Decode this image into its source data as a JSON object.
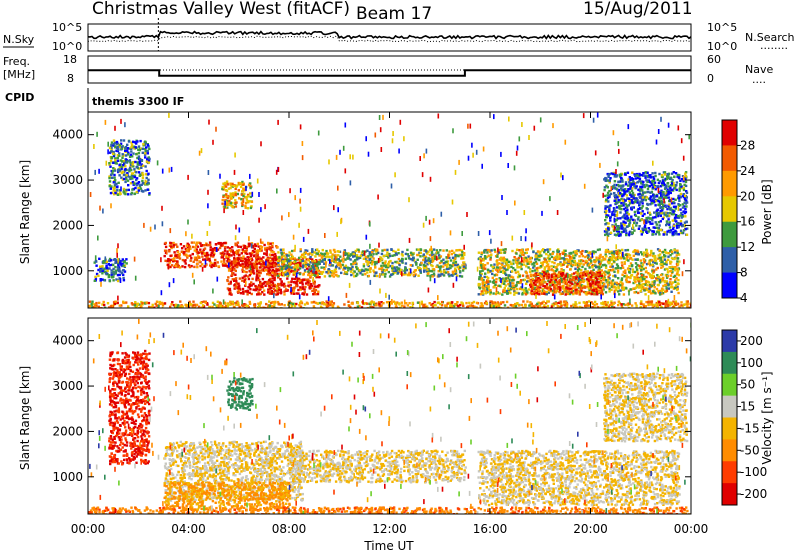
{
  "header": {
    "radar": "Christmas Valley West (fitACF)",
    "beam": "Beam 17",
    "date": "15/Aug/2011"
  },
  "panels": {
    "nsky": {
      "label": "N.Sky",
      "ticks_left": [
        "10^5",
        "10^0"
      ],
      "ticks_right": [
        "10^5",
        "10^0"
      ],
      "right_label": "N.Search",
      "right_legend": "........"
    },
    "freq": {
      "label_line1": "Freq.",
      "label_line2": "[MHz]",
      "ticks_left": [
        "18",
        "8"
      ],
      "ticks_right": [
        "60",
        "0"
      ],
      "right_label": "Nave",
      "right_legend": "...."
    },
    "cpid": {
      "label": "CPID",
      "text": "themis 3300 IF"
    },
    "power": {
      "ylabel": "Slant Range [km]",
      "yticks": [
        "4000",
        "3000",
        "2000",
        "1000"
      ],
      "colorbar_label": "Power [dB]",
      "colorbar_ticks": [
        "28",
        "24",
        "20",
        "16",
        "12",
        "8",
        "4"
      ],
      "colors": [
        "#e00000",
        "#f25a00",
        "#ff9a00",
        "#e6c800",
        "#3e9a3e",
        "#2e5fa8",
        "#0000ff"
      ]
    },
    "velocity": {
      "ylabel": "Slant Range [km]",
      "yticks": [
        "4000",
        "3000",
        "2000",
        "1000"
      ],
      "colorbar_label": "Velocity [m s⁻¹]",
      "colorbar_ticks": [
        "200",
        "100",
        "50",
        "15",
        "-15",
        "-50",
        "-100",
        "-200"
      ],
      "colors": [
        "#2c3aa8",
        "#2e8b57",
        "#6ccf2a",
        "#c8c8c0",
        "#f4b400",
        "#ff8c00",
        "#ff3c00",
        "#e00000"
      ]
    }
  },
  "xaxis": {
    "label": "Time UT",
    "ticks": [
      "00:00",
      "04:00",
      "08:00",
      "12:00",
      "16:00",
      "20:00",
      "00:00"
    ]
  },
  "chart_data": [
    {
      "type": "line",
      "title": "N.Sky",
      "x_range": [
        "00:00",
        "24:00"
      ],
      "ylim": [
        "10^0",
        "10^5"
      ],
      "yscale": "log"
    },
    {
      "type": "line",
      "title": "Freq. [MHz]",
      "x": [
        "00:00",
        "02:50",
        "02:50",
        "15:00",
        "15:00",
        "24:00"
      ],
      "series": [
        {
          "name": "Freq.",
          "values": [
            12.7,
            12.7,
            10.7,
            10.7,
            12.7,
            12.7
          ]
        }
      ],
      "ylim": [
        8,
        18
      ],
      "y2lim": [
        0,
        60
      ]
    },
    {
      "type": "heatmap",
      "title": "Power [dB]",
      "xlabel": "Time UT",
      "ylabel": "Slant Range [km]",
      "x_range_hours": [
        0,
        24
      ],
      "ylim": [
        180,
        4500
      ],
      "color_scale": [
        4,
        8,
        12,
        16,
        20,
        24,
        28
      ],
      "regions": [
        {
          "hours": [
            3.0,
            7.5
          ],
          "range_km": [
            1100,
            1650
          ],
          "power_db": 26
        },
        {
          "hours": [
            5.5,
            9.2
          ],
          "range_km": [
            500,
            1300
          ],
          "power_db": 28
        },
        {
          "hours": [
            7.5,
            15.0
          ],
          "range_km": [
            900,
            1500
          ],
          "power_db": 14
        },
        {
          "hours": [
            15.5,
            23.5
          ],
          "range_km": [
            500,
            1500
          ],
          "power_db": 16
        },
        {
          "hours": [
            17.5,
            20.5
          ],
          "range_km": [
            500,
            1000
          ],
          "power_db": 26
        },
        {
          "hours": [
            0.2,
            1.5
          ],
          "range_km": [
            800,
            1300
          ],
          "power_db": 8
        },
        {
          "hours": [
            0.8,
            2.4
          ],
          "range_km": [
            2700,
            3900
          ],
          "power_db": 10
        },
        {
          "hours": [
            5.3,
            6.5
          ],
          "range_km": [
            2400,
            3000
          ],
          "power_db": 18
        },
        {
          "hours": [
            20.5,
            23.8
          ],
          "range_km": [
            1800,
            3200
          ],
          "power_db": 8
        },
        {
          "hours": [
            0,
            24
          ],
          "range_km": [
            180,
            350
          ],
          "power_db": 20
        }
      ]
    },
    {
      "type": "heatmap",
      "title": "Velocity [m s⁻¹]",
      "xlabel": "Time UT",
      "ylabel": "Slant Range [km]",
      "x_range_hours": [
        0,
        24
      ],
      "ylim": [
        180,
        4500
      ],
      "color_scale": [
        -200,
        -100,
        -50,
        -15,
        15,
        50,
        100,
        200
      ],
      "regions": [
        {
          "hours": [
            0.8,
            2.4
          ],
          "range_km": [
            1300,
            3800
          ],
          "velocity": -150
        },
        {
          "hours": [
            3.0,
            8.5
          ],
          "range_km": [
            500,
            1800
          ],
          "velocity": 0
        },
        {
          "hours": [
            3.0,
            8.0
          ],
          "range_km": [
            300,
            900
          ],
          "velocity": -40
        },
        {
          "hours": [
            8.0,
            15.0
          ],
          "range_km": [
            900,
            1600
          ],
          "velocity": 0
        },
        {
          "hours": [
            15.5,
            23.5
          ],
          "range_km": [
            400,
            1600
          ],
          "velocity": 0
        },
        {
          "hours": [
            5.5,
            6.5
          ],
          "range_km": [
            2500,
            3200
          ],
          "velocity": 120
        },
        {
          "hours": [
            20.5,
            23.8
          ],
          "range_km": [
            1800,
            3300
          ],
          "velocity": 0
        },
        {
          "hours": [
            0,
            24
          ],
          "range_km": [
            180,
            350
          ],
          "velocity": -60
        }
      ]
    }
  ]
}
